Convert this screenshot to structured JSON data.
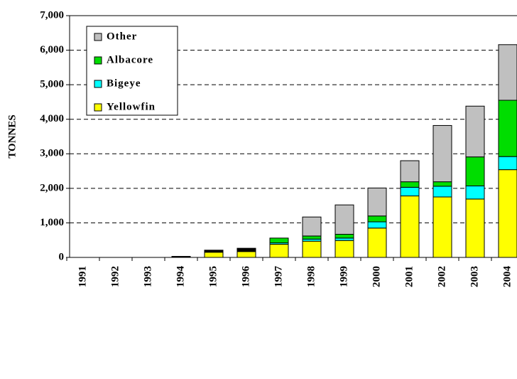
{
  "chart_data": {
    "type": "bar",
    "stacked": true,
    "y_label": "TONNES",
    "categories": [
      "1991",
      "1992",
      "1993",
      "1994",
      "1995",
      "1996",
      "1997",
      "1998",
      "1999",
      "2000",
      "2001",
      "2002",
      "2003",
      "2004"
    ],
    "series": [
      {
        "name": "Yellowfin",
        "color": "#ffff00",
        "values": [
          0,
          0,
          0,
          0,
          150,
          170,
          380,
          470,
          490,
          850,
          1780,
          1750,
          1690,
          2540
        ]
      },
      {
        "name": "Bigeye",
        "color": "#00ffff",
        "values": [
          0,
          0,
          0,
          0,
          0,
          0,
          40,
          60,
          70,
          180,
          250,
          310,
          380,
          380
        ]
      },
      {
        "name": "Albacore",
        "color": "#00dd00",
        "values": [
          0,
          0,
          0,
          0,
          0,
          0,
          140,
          90,
          110,
          170,
          160,
          130,
          840,
          1630
        ]
      },
      {
        "name": "Other",
        "color": "#c0c0c0",
        "values": [
          0,
          0,
          0,
          0,
          0,
          0,
          0,
          550,
          850,
          810,
          610,
          1630,
          1470,
          1610
        ]
      },
      {
        "color": "#000000",
        "values": [
          0,
          0,
          0,
          30,
          60,
          95,
          0,
          0,
          0,
          0,
          0,
          0,
          0,
          0
        ]
      }
    ],
    "ylim": [
      0,
      7000
    ],
    "yticks": [
      {
        "value": 0,
        "label": "0"
      },
      {
        "value": 1000,
        "label": "1,000"
      },
      {
        "value": 2000,
        "label": "2,000"
      },
      {
        "value": 3000,
        "label": "3,000"
      },
      {
        "value": 4000,
        "label": "4,000"
      },
      {
        "value": 5000,
        "label": "5,000"
      },
      {
        "value": 6000,
        "label": "6,000"
      },
      {
        "value": 7000,
        "label": "7,000"
      }
    ],
    "grid": true,
    "legend": "upper left"
  }
}
